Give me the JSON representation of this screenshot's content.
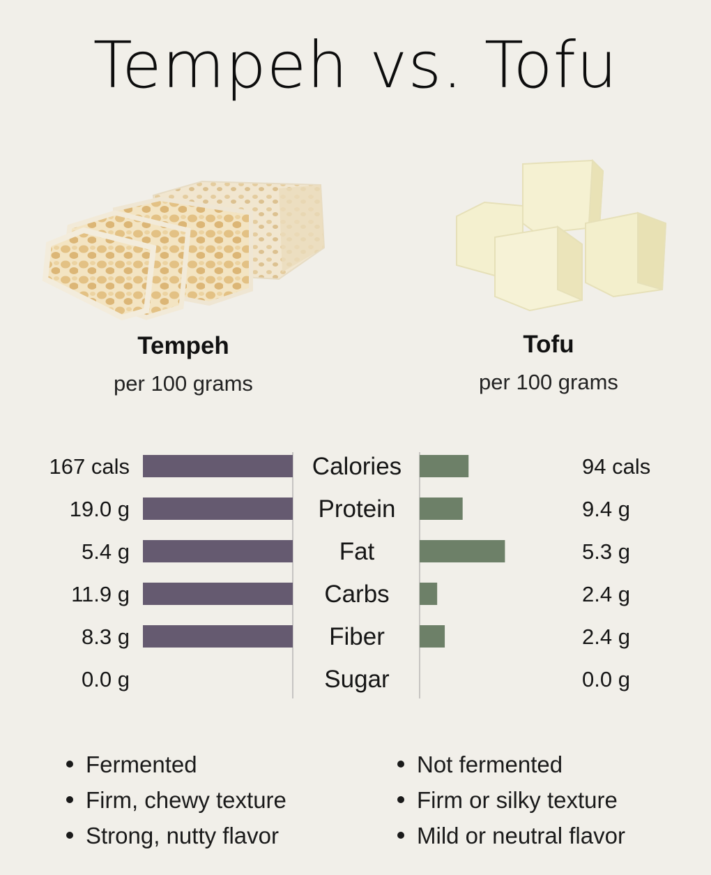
{
  "title": "Tempeh vs. Tofu",
  "foods": {
    "left": {
      "name": "Tempeh",
      "serving": "per 100 grams"
    },
    "right": {
      "name": "Tofu",
      "serving": "per 100 grams"
    }
  },
  "colors": {
    "tempeh_bar": "#655a70",
    "tofu_bar": "#6d8068",
    "background": "#f1efe9"
  },
  "chart_data": {
    "type": "bar",
    "orientation": "horizontal-diverging",
    "categories": [
      "Calories",
      "Protein",
      "Fat",
      "Carbs",
      "Fiber",
      "Sugar"
    ],
    "series": [
      {
        "name": "Tempeh",
        "values": [
          167,
          19.0,
          5.4,
          11.9,
          8.3,
          0.0
        ],
        "labels": [
          "167 cals",
          "19.0 g",
          "5.4 g",
          "11.9 g",
          "8.3 g",
          "0.0 g"
        ]
      },
      {
        "name": "Tofu",
        "values": [
          94,
          9.4,
          5.3,
          2.4,
          2.4,
          0.0
        ],
        "labels": [
          "94 cals",
          "9.4 g",
          "5.3 g",
          "2.4 g",
          "2.4 g",
          "0.0 g"
        ]
      }
    ]
  },
  "facts": {
    "left": [
      "Fermented",
      "Firm, chewy texture",
      "Strong, nutty flavor"
    ],
    "right": [
      "Not fermented",
      "Firm or silky texture",
      "Mild or neutral flavor"
    ]
  }
}
